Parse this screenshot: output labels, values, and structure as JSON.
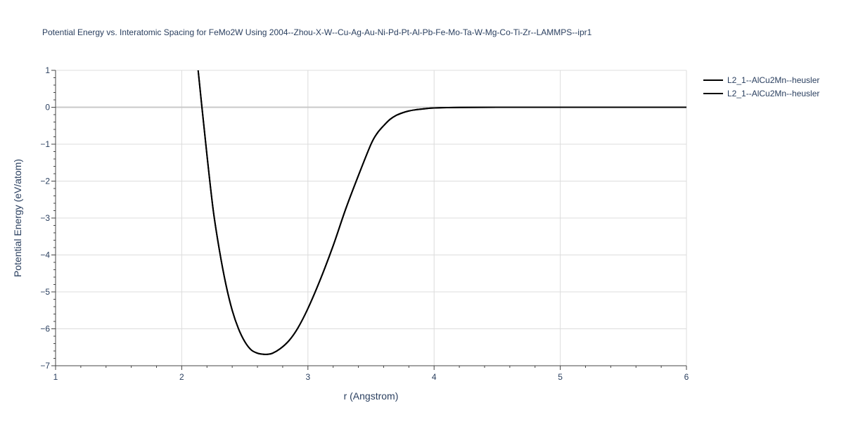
{
  "chart_data": {
    "type": "line",
    "title": "Potential Energy vs. Interatomic Spacing for FeMo2W Using 2004--Zhou-X-W--Cu-Ag-Au-Ni-Pd-Pt-Al-Pb-Fe-Mo-Ta-W-Mg-Co-Ti-Zr--LAMMPS--ipr1",
    "xlabel": "r (Angstrom)",
    "ylabel": "Potential Energy (eV/atom)",
    "xlim": [
      1,
      6
    ],
    "ylim": [
      -7,
      1
    ],
    "x_ticks": [
      1,
      2,
      3,
      4,
      5,
      6
    ],
    "y_ticks": [
      1,
      0,
      -1,
      -2,
      -3,
      -4,
      -5,
      -6,
      -7
    ],
    "x_tick_labels": [
      "1",
      "2",
      "3",
      "4",
      "5",
      "6"
    ],
    "y_tick_labels": [
      "1",
      "0",
      "−1",
      "−2",
      "−3",
      "−4",
      "−5",
      "−6",
      "−7"
    ],
    "grid": true,
    "legend_position": "top-right",
    "series": [
      {
        "name": "L2_1--AlCu2Mn--heusler",
        "color": "#000000",
        "x": [
          2.13,
          2.16,
          2.2,
          2.25,
          2.3,
          2.35,
          2.4,
          2.45,
          2.5,
          2.55,
          2.6,
          2.65,
          2.68,
          2.72,
          2.78,
          2.85,
          2.92,
          3.0,
          3.1,
          3.2,
          3.3,
          3.4,
          3.5,
          3.55,
          3.6,
          3.65,
          3.7,
          3.75,
          3.8,
          3.85,
          3.9,
          3.95,
          4.0,
          4.1,
          4.2,
          4.5,
          5.0,
          5.5,
          6.0
        ],
        "y": [
          1.0,
          0.0,
          -1.3,
          -2.8,
          -3.9,
          -4.8,
          -5.5,
          -6.0,
          -6.35,
          -6.57,
          -6.66,
          -6.69,
          -6.69,
          -6.66,
          -6.54,
          -6.32,
          -5.98,
          -5.45,
          -4.65,
          -3.75,
          -2.75,
          -1.85,
          -1.0,
          -0.7,
          -0.5,
          -0.33,
          -0.22,
          -0.15,
          -0.1,
          -0.07,
          -0.05,
          -0.03,
          -0.02,
          -0.01,
          -0.005,
          0.0,
          0.0,
          0.0,
          0.0
        ]
      },
      {
        "name": "L2_1--AlCu2Mn--heusler",
        "color": "#000000",
        "x": [
          2.13,
          2.16,
          2.2,
          2.25,
          2.3,
          2.35,
          2.4,
          2.45,
          2.5,
          2.55,
          2.6,
          2.65,
          2.68,
          2.72,
          2.78,
          2.85,
          2.92,
          3.0,
          3.1,
          3.2,
          3.3,
          3.4,
          3.5,
          3.55,
          3.6,
          3.65,
          3.7,
          3.75,
          3.8,
          3.85,
          3.9,
          3.95,
          4.0,
          4.1,
          4.2,
          4.5,
          5.0,
          5.5,
          6.0
        ],
        "y": [
          1.0,
          0.0,
          -1.3,
          -2.8,
          -3.9,
          -4.8,
          -5.5,
          -6.0,
          -6.35,
          -6.57,
          -6.66,
          -6.69,
          -6.69,
          -6.66,
          -6.54,
          -6.32,
          -5.98,
          -5.45,
          -4.65,
          -3.75,
          -2.75,
          -1.85,
          -1.0,
          -0.7,
          -0.5,
          -0.33,
          -0.22,
          -0.15,
          -0.1,
          -0.07,
          -0.05,
          -0.03,
          -0.02,
          -0.01,
          -0.005,
          0.0,
          0.0,
          0.0,
          0.0
        ]
      }
    ]
  }
}
